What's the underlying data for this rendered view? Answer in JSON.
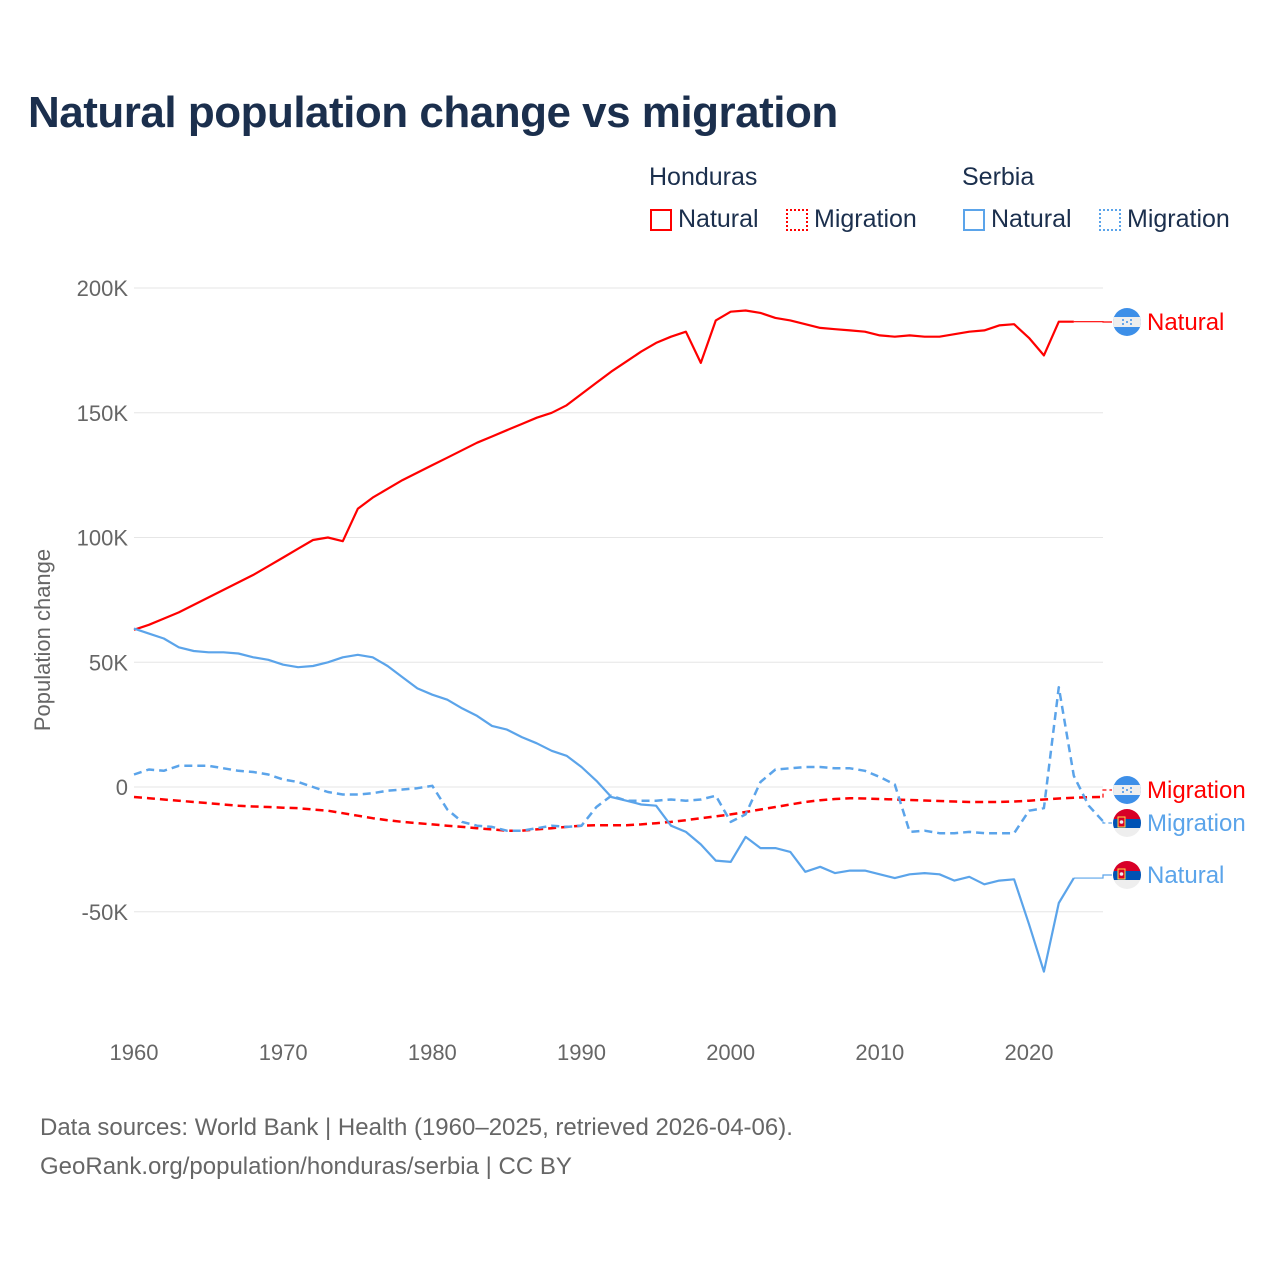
{
  "title": "Natural population change vs migration",
  "legend": {
    "groups": [
      {
        "name": "Honduras",
        "items": [
          {
            "label": "Natural",
            "style": "solid",
            "color": "#ff0000"
          },
          {
            "label": "Migration",
            "style": "dotted",
            "color": "#ff0000"
          }
        ]
      },
      {
        "name": "Serbia",
        "items": [
          {
            "label": "Natural",
            "style": "solid",
            "color": "#5ba4ea"
          },
          {
            "label": "Migration",
            "style": "dotted",
            "color": "#5ba4ea"
          }
        ]
      }
    ]
  },
  "source": {
    "line1": "Data sources: World Bank | Health (1960–2025, retrieved 2026-04-06).",
    "line2": "GeoRank.org/population/honduras/serbia | CC BY"
  },
  "chart_data": {
    "type": "line",
    "title": "Natural population change vs migration",
    "xlabel": "",
    "ylabel": "Population change",
    "xlim": [
      1960,
      2025
    ],
    "ylim": [
      -90000,
      200000
    ],
    "x_ticks": [
      1960,
      1970,
      1980,
      1990,
      2000,
      2010,
      2020
    ],
    "y_ticks": [
      {
        "v": 200000,
        "label": "200K"
      },
      {
        "v": 150000,
        "label": "150K"
      },
      {
        "v": 100000,
        "label": "100K"
      },
      {
        "v": 50000,
        "label": "50K"
      },
      {
        "v": 0,
        "label": "0"
      },
      {
        "v": -50000,
        "label": "-50K"
      }
    ],
    "grid": true,
    "legend_position": "top-right",
    "series": [
      {
        "name": "Honduras Natural",
        "end_label": "Natural",
        "country": "honduras",
        "color": "#ff0000",
        "dash": "",
        "start": 1960,
        "values_k": [
          63,
          65,
          67.5,
          70,
          73,
          76,
          79,
          82,
          85,
          88.5,
          92,
          95.5,
          99,
          100,
          98.5,
          111.5,
          116,
          119.5,
          123,
          126,
          129,
          132,
          135,
          138,
          140.5,
          143,
          145.5,
          148,
          150,
          153,
          157.5,
          162,
          166.5,
          170.5,
          174.5,
          178,
          180.5,
          182.5,
          170,
          187,
          190.5,
          191,
          190,
          188,
          187,
          185.5,
          184,
          183.5,
          183,
          182.5,
          181,
          180.5,
          181,
          180.5,
          180.5,
          181.5,
          182.5,
          183,
          185,
          185.5,
          180,
          173,
          186.5,
          186.5
        ]
      },
      {
        "name": "Honduras Migration",
        "end_label": "Migration",
        "country": "honduras",
        "color": "#ff0000",
        "dash": "8,5",
        "start": 1960,
        "values_k": [
          -4,
          -4.5,
          -5,
          -5.5,
          -6,
          -6.5,
          -7,
          -7.5,
          -7.8,
          -8,
          -8.3,
          -8.5,
          -9,
          -9.5,
          -10.5,
          -11.5,
          -12.5,
          -13.3,
          -14,
          -14.5,
          -15,
          -15.5,
          -16,
          -16.5,
          -17,
          -17.5,
          -17.5,
          -17,
          -16.5,
          -16,
          -15.5,
          -15.3,
          -15.3,
          -15.3,
          -15,
          -14.5,
          -14,
          -13.3,
          -12.5,
          -11.8,
          -11,
          -10,
          -9,
          -8,
          -7,
          -6,
          -5.3,
          -4.8,
          -4.5,
          -4.6,
          -4.8,
          -5,
          -5.2,
          -5.4,
          -5.6,
          -5.8,
          -6,
          -6,
          -6,
          -5.8,
          -5.5,
          -5,
          -4.6,
          -4.3,
          -4.1,
          -4
        ]
      },
      {
        "name": "Serbia Natural",
        "end_label": "Natural",
        "country": "serbia",
        "color": "#5ba4ea",
        "dash": "",
        "start": 1960,
        "values_k": [
          63.5,
          61.5,
          59.5,
          56,
          54.5,
          54,
          54,
          53.5,
          52,
          51,
          49,
          48,
          48.5,
          50,
          52,
          53,
          52,
          48.5,
          44,
          39.5,
          37,
          35,
          31.5,
          28.5,
          24.5,
          23,
          20,
          17.5,
          14.5,
          12.5,
          8,
          2.5,
          -4,
          -5.5,
          -7,
          -7.5,
          -15.5,
          -18,
          -23,
          -29.5,
          -30,
          -20,
          -24.5,
          -24.5,
          -26,
          -34,
          -32,
          -34.5,
          -33.5,
          -33.5,
          -35,
          -36.5,
          -35,
          -34.5,
          -35,
          -37.5,
          -36,
          -39,
          -37.5,
          -37,
          -55,
          -74,
          -46.5,
          -36.5
        ]
      },
      {
        "name": "Serbia Migration",
        "end_label": "Migration",
        "country": "serbia",
        "color": "#5ba4ea",
        "dash": "8,5",
        "start": 1960,
        "values_k": [
          5,
          7,
          6.5,
          8.5,
          8.5,
          8.5,
          7.5,
          6.5,
          6,
          5,
          3,
          2,
          0,
          -2,
          -3,
          -3,
          -2.5,
          -1.5,
          -1,
          -0.5,
          0.5,
          -9,
          -14,
          -15.5,
          -16,
          -17.5,
          -17.5,
          -16.5,
          -15.5,
          -16,
          -15.5,
          -8,
          -3.5,
          -5.5,
          -5.5,
          -5.5,
          -5,
          -5.5,
          -5,
          -3.5,
          -14,
          -11,
          2,
          7,
          7.5,
          8,
          8,
          7.5,
          7.5,
          6.5,
          4,
          1,
          -18,
          -17.5,
          -18.5,
          -18.5,
          -18,
          -18.5,
          -18.5,
          -18.5,
          -9.5,
          -8.5,
          40,
          4.5,
          -7.5,
          -14
        ]
      }
    ]
  }
}
